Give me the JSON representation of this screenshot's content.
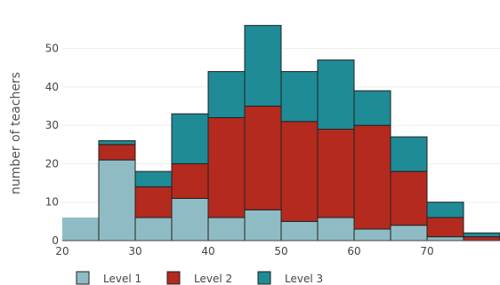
{
  "chart_data": {
    "type": "bar",
    "stacked": true,
    "ylabel": "number of teachers",
    "xlabel": "",
    "x_bins": [
      [
        20,
        25
      ],
      [
        25,
        30
      ],
      [
        30,
        35
      ],
      [
        35,
        40
      ],
      [
        40,
        45
      ],
      [
        45,
        50
      ],
      [
        50,
        55
      ],
      [
        55,
        60
      ],
      [
        60,
        65
      ],
      [
        65,
        70
      ],
      [
        70,
        75
      ],
      [
        75,
        80
      ]
    ],
    "x_ticks": [
      20,
      30,
      40,
      50,
      60,
      70
    ],
    "y_ticks": [
      0,
      10,
      20,
      30,
      40,
      50
    ],
    "xlim": [
      20,
      80
    ],
    "ylim": [
      0,
      58
    ],
    "grid": true,
    "legend_position": "bottom",
    "series": [
      {
        "name": "Level 1",
        "color": "#8fbcc4",
        "values": [
          6,
          21,
          6,
          11,
          6,
          8,
          5,
          6,
          3,
          4,
          1,
          0
        ]
      },
      {
        "name": "Level 2",
        "color": "#b42a1e",
        "values": [
          0,
          4,
          8,
          9,
          26,
          27,
          26,
          23,
          27,
          14,
          5,
          1
        ]
      },
      {
        "name": "Level 3",
        "color": "#1e8b96",
        "values": [
          0,
          1,
          4,
          13,
          12,
          21,
          13,
          18,
          9,
          9,
          4,
          1
        ]
      }
    ]
  }
}
